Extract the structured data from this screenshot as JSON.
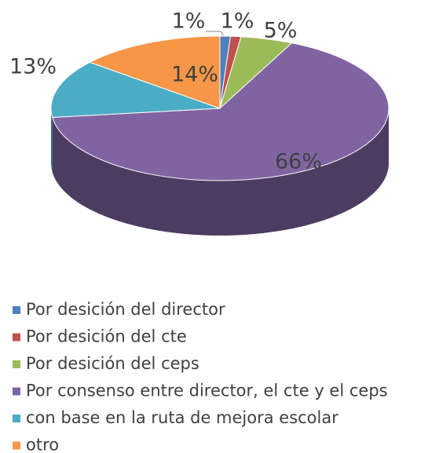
{
  "chart_data": {
    "type": "pie",
    "categories": [
      "Por desición del director",
      "Por desición del cte",
      "Por desición del ceps",
      "Por consenso entre director, el cte y el ceps",
      "con base en la ruta de mejora escolar",
      "otro"
    ],
    "values": [
      1,
      1,
      5,
      66,
      13,
      14
    ],
    "value_labels": [
      "1%",
      "1%",
      "5%",
      "66%",
      "13%",
      "14%"
    ],
    "colors": [
      "#4f81bd",
      "#c0504d",
      "#9bbb59",
      "#8064a2",
      "#4bacc6",
      "#f79646"
    ],
    "legend": "bottom"
  }
}
